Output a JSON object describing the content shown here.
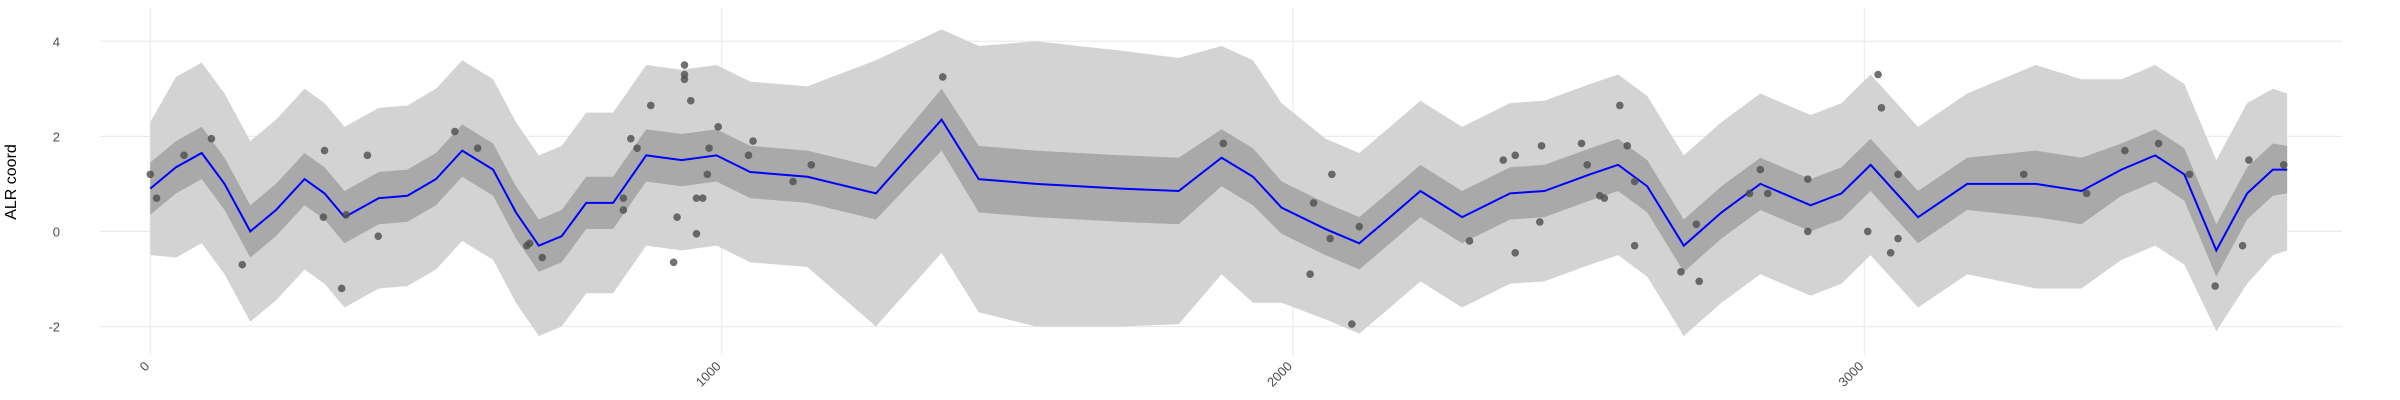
{
  "chart_data": {
    "type": "line",
    "y_label": "ALR coord",
    "xlim": [
      -88,
      3836
    ],
    "ylim": [
      -2.6,
      4.7
    ],
    "xticks": [
      0,
      1000,
      2000,
      3000
    ],
    "yticks": [
      -2,
      0,
      2,
      4
    ],
    "grid": true,
    "x": [
      0,
      45,
      90,
      130,
      175,
      220,
      270,
      305,
      340,
      400,
      450,
      500,
      546,
      600,
      640,
      680,
      720,
      763,
      810,
      868,
      930,
      991,
      1050,
      1150,
      1270,
      1385,
      1450,
      1550,
      1700,
      1800,
      1875,
      1930,
      1980,
      2057,
      2116,
      2170,
      2223,
      2296,
      2380,
      2440,
      2520,
      2569,
      2620,
      2684,
      2750,
      2818,
      2906,
      2960,
      3011,
      3094,
      3180,
      3300,
      3380,
      3450,
      3509,
      3560,
      3616,
      3670,
      3715,
      3740
    ],
    "line": {
      "color": "#0000ff",
      "values": [
        0.9,
        1.35,
        1.65,
        1.0,
        0.0,
        0.45,
        1.1,
        0.8,
        0.3,
        0.7,
        0.75,
        1.1,
        1.7,
        1.3,
        0.4,
        -0.3,
        -0.1,
        0.6,
        0.6,
        1.6,
        1.5,
        1.6,
        1.25,
        1.15,
        0.8,
        2.35,
        1.1,
        1.0,
        0.9,
        0.85,
        1.55,
        1.15,
        0.5,
        0.05,
        -0.25,
        0.3,
        0.85,
        0.3,
        0.8,
        0.85,
        1.2,
        1.4,
        0.95,
        -0.3,
        0.4,
        1.0,
        0.55,
        0.8,
        1.4,
        0.3,
        1.0,
        1.0,
        0.85,
        1.3,
        1.6,
        1.2,
        -0.4,
        0.8,
        1.3,
        1.3
      ]
    },
    "bands": [
      {
        "color": "#d3d3d3",
        "lower": [
          -0.5,
          -0.55,
          -0.25,
          -0.9,
          -1.9,
          -1.45,
          -0.8,
          -1.1,
          -1.6,
          -1.2,
          -1.15,
          -0.8,
          -0.2,
          -0.6,
          -1.5,
          -2.2,
          -2.0,
          -1.3,
          -1.3,
          -0.3,
          -0.4,
          -0.3,
          -0.65,
          -0.75,
          -2.0,
          -0.45,
          -1.7,
          -2.0,
          -2.0,
          -1.95,
          -0.9,
          -1.5,
          -1.5,
          -1.85,
          -2.15,
          -1.6,
          -1.05,
          -1.6,
          -1.1,
          -1.05,
          -0.7,
          -0.5,
          -0.95,
          -2.2,
          -1.5,
          -0.9,
          -1.35,
          -1.1,
          -0.5,
          -1.6,
          -0.9,
          -1.2,
          -1.2,
          -0.6,
          -0.3,
          -0.7,
          -2.1,
          -1.1,
          -0.5,
          -0.4
        ],
        "upper": [
          2.3,
          3.25,
          3.55,
          2.9,
          1.9,
          2.35,
          3.0,
          2.7,
          2.2,
          2.6,
          2.65,
          3.0,
          3.6,
          3.2,
          2.3,
          1.6,
          1.8,
          2.5,
          2.5,
          3.5,
          3.4,
          3.5,
          3.15,
          3.05,
          3.6,
          4.25,
          3.9,
          4.0,
          3.8,
          3.65,
          3.9,
          3.6,
          2.7,
          1.95,
          1.65,
          2.2,
          2.75,
          2.2,
          2.7,
          2.75,
          3.1,
          3.3,
          2.85,
          1.6,
          2.3,
          2.9,
          2.45,
          2.7,
          3.3,
          2.2,
          2.9,
          3.5,
          3.2,
          3.2,
          3.5,
          3.1,
          1.5,
          2.7,
          3.0,
          2.9
        ]
      },
      {
        "color": "#a9a9a9",
        "lower": [
          0.35,
          0.8,
          1.1,
          0.45,
          -0.55,
          -0.1,
          0.55,
          0.25,
          -0.25,
          0.15,
          0.2,
          0.55,
          1.15,
          0.75,
          -0.15,
          -0.85,
          -0.65,
          0.05,
          0.05,
          1.05,
          0.95,
          1.05,
          0.7,
          0.6,
          0.25,
          1.7,
          0.4,
          0.3,
          0.2,
          0.15,
          0.95,
          0.55,
          -0.05,
          -0.5,
          -0.8,
          -0.25,
          0.3,
          -0.25,
          0.25,
          0.3,
          0.65,
          0.85,
          0.4,
          -0.85,
          -0.15,
          0.45,
          0.0,
          0.25,
          0.85,
          -0.25,
          0.45,
          0.3,
          0.15,
          0.75,
          1.05,
          0.65,
          -0.95,
          0.25,
          0.75,
          0.8
        ],
        "upper": [
          1.45,
          1.9,
          2.2,
          1.55,
          0.55,
          1.0,
          1.65,
          1.35,
          0.85,
          1.25,
          1.3,
          1.65,
          2.25,
          1.85,
          0.95,
          0.25,
          0.45,
          1.15,
          1.15,
          2.15,
          2.05,
          2.15,
          1.8,
          1.7,
          1.35,
          3.0,
          1.8,
          1.7,
          1.6,
          1.55,
          2.15,
          1.75,
          1.05,
          0.6,
          0.3,
          0.85,
          1.4,
          0.85,
          1.35,
          1.4,
          1.75,
          1.95,
          1.5,
          0.25,
          0.95,
          1.55,
          1.1,
          1.35,
          1.95,
          0.85,
          1.55,
          1.7,
          1.55,
          1.85,
          2.15,
          1.75,
          0.15,
          1.35,
          1.85,
          1.8
        ]
      }
    ],
    "points": {
      "color": "#4d4d4d",
      "x": [
        0,
        11,
        59,
        107,
        161,
        305,
        303,
        335,
        343,
        380,
        399,
        533,
        573,
        659,
        664,
        686,
        828,
        828,
        841,
        852,
        876,
        916,
        922,
        935,
        935,
        935,
        946,
        956,
        956,
        967,
        975,
        978,
        994,
        1047,
        1055,
        1125,
        1157,
        1387,
        1878,
        2036,
        2030,
        2068,
        2065,
        2103,
        2116,
        2309,
        2368,
        2389,
        2389,
        2432,
        2435,
        2505,
        2515,
        2537,
        2545,
        2572,
        2585,
        2598,
        2598,
        2679,
        2706,
        2711,
        2799,
        2818,
        2831,
        2901,
        2901,
        3006,
        3024,
        3030,
        3046,
        3059,
        3059,
        3279,
        3389,
        3456,
        3515,
        3569,
        3614,
        3662,
        3673,
        3734
      ],
      "values": [
        1.2,
        0.7,
        1.6,
        1.95,
        -0.7,
        1.7,
        0.3,
        -1.2,
        0.35,
        1.6,
        -0.1,
        2.1,
        1.75,
        -0.3,
        -0.25,
        -0.55,
        0.7,
        0.45,
        1.95,
        1.75,
        2.65,
        -0.65,
        0.3,
        3.5,
        3.3,
        3.2,
        2.75,
        0.7,
        -0.05,
        0.7,
        1.2,
        1.75,
        2.2,
        1.6,
        1.9,
        1.05,
        1.4,
        3.25,
        1.85,
        0.6,
        -0.9,
        1.2,
        -0.15,
        -1.95,
        0.1,
        -0.2,
        1.5,
        -0.45,
        1.6,
        0.2,
        1.8,
        1.85,
        1.4,
        0.75,
        0.7,
        2.65,
        1.8,
        -0.3,
        1.05,
        -0.85,
        0.15,
        -1.05,
        0.8,
        1.3,
        0.8,
        0.0,
        1.1,
        0.0,
        3.3,
        2.6,
        -0.45,
        -0.15,
        1.2,
        1.2,
        0.8,
        1.7,
        1.85,
        1.2,
        -1.15,
        -0.3,
        1.5,
        1.4
      ]
    }
  }
}
